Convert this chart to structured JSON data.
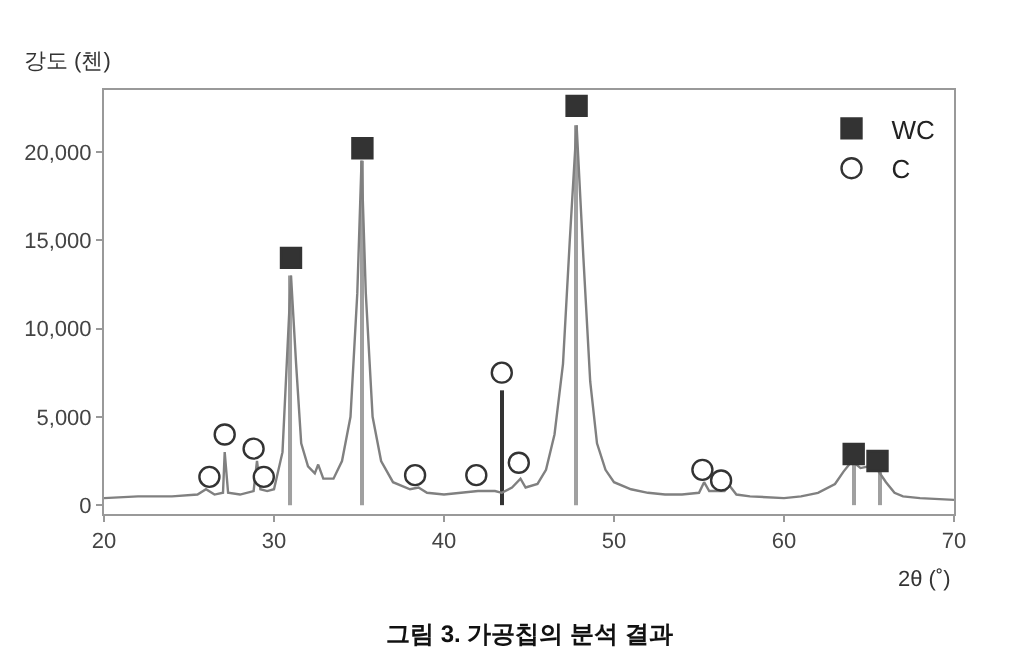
{
  "chart_data": {
    "type": "line",
    "title": null,
    "xlabel": "2θ (˚)",
    "ylabel": "강도 (첸)",
    "annotations": [
      "그림 3. 가공칩의 분석 결과"
    ],
    "xlim": [
      20,
      70
    ],
    "ylim": [
      -500,
      23500
    ],
    "xticks": [
      20,
      30,
      40,
      50,
      60,
      70
    ],
    "yticks": [
      {
        "value": 0,
        "label": "0"
      },
      {
        "value": 5000,
        "label": "5,000"
      },
      {
        "value": 10000,
        "label": "10,000"
      },
      {
        "value": 15000,
        "label": "15,000"
      },
      {
        "value": 20000,
        "label": "20,000"
      }
    ],
    "grid": false,
    "legend": "top right",
    "series": [
      {
        "color": "#808080",
        "marker": "none",
        "line_style": "solid",
        "x": [
          20,
          22,
          24,
          25.5,
          26,
          26.5,
          27,
          27.1,
          27.3,
          28,
          28.8,
          29,
          29.2,
          29.6,
          30,
          30.5,
          30.8,
          31,
          31.3,
          31.6,
          32,
          32.4,
          32.6,
          32.9,
          33.5,
          34,
          34.5,
          34.9,
          35.15,
          35.4,
          35.8,
          36.3,
          37,
          38,
          38.5,
          39,
          40,
          41,
          42,
          43,
          43.4,
          44,
          44.5,
          44.8,
          45.5,
          46,
          46.5,
          47,
          47.4,
          47.8,
          48.2,
          48.6,
          49,
          49.5,
          50,
          51,
          52,
          53,
          54,
          55,
          55.3,
          55.6,
          56.5,
          56.8,
          57.2,
          58,
          60,
          61,
          62,
          63,
          63.5,
          64,
          64.5,
          65,
          65.5,
          66,
          66.5,
          67,
          68,
          70
        ],
        "values": [
          400,
          500,
          500,
          600,
          900,
          600,
          700,
          3000,
          700,
          600,
          800,
          2500,
          900,
          800,
          900,
          3000,
          9000,
          13000,
          8000,
          3500,
          2200,
          1800,
          2300,
          1500,
          1500,
          2500,
          5000,
          12000,
          19500,
          12000,
          5000,
          2500,
          1300,
          900,
          1000,
          700,
          600,
          700,
          800,
          800,
          700,
          1000,
          1500,
          1000,
          1200,
          2000,
          4000,
          8000,
          15000,
          21500,
          14000,
          7000,
          3500,
          2000,
          1300,
          900,
          700,
          600,
          600,
          700,
          1300,
          800,
          800,
          1100,
          600,
          500,
          400,
          500,
          700,
          1200,
          1900,
          2500,
          2100,
          2200,
          2000,
          1300,
          700,
          500,
          400,
          300
        ]
      },
      {
        "type": "bar",
        "x": [
          31,
          35.2,
          43.4,
          47.8,
          64.1,
          65.6
        ],
        "values": [
          13000,
          19500,
          6500,
          21500,
          2500,
          2000
        ],
        "colors": [
          "#a0a0a0",
          "#a0a0a0",
          "#333333",
          "#a0a0a0",
          "#a0a0a0",
          "#a0a0a0"
        ]
      },
      {
        "type": "scatter",
        "name": "WC",
        "color": "#333333",
        "marker": "square",
        "x": [
          31,
          35.2,
          47.8,
          64.1,
          65.5
        ],
        "values": [
          14000,
          20200,
          22600,
          2900,
          2500
        ]
      },
      {
        "type": "scatter",
        "name": "C",
        "color": "#ffffff",
        "marker": "circle",
        "x": [
          26.2,
          27.1,
          28.8,
          29.4,
          38.3,
          41.9,
          43.4,
          44.4,
          55.2,
          56.3
        ],
        "values": [
          1600,
          4000,
          3200,
          1600,
          1700,
          1700,
          7500,
          2400,
          2000,
          1400
        ]
      }
    ]
  }
}
